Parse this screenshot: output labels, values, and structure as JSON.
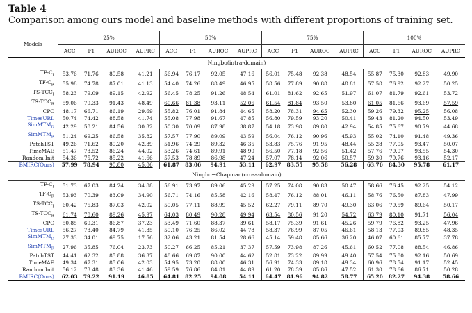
{
  "title": "Table 4",
  "caption": "Comparison among ours model and baseline methods with different proportions of training set.",
  "models_label": "Models",
  "proportions": [
    "25%",
    "50%",
    "75%",
    "100%"
  ],
  "metrics": [
    "ACC",
    "F1",
    "AUROC",
    "AUPRC"
  ],
  "colors": {
    "text": "#111111",
    "model_blue": "#1f3fb0"
  },
  "sections": [
    {
      "name": "Ningbo(intra-domain)",
      "rows": [
        {
          "model": "TF-C_I",
          "blue": false,
          "values": [
            [
              "53.76",
              "71.76",
              "89.58",
              "41.21"
            ],
            [
              "56.94",
              "76.17",
              "92.05",
              "47.16"
            ],
            [
              "56.01",
              "75.48",
              "92.38",
              "48.54"
            ],
            [
              "55.87",
              "75.30",
              "92.83",
              "49.90"
            ]
          ]
        },
        {
          "model": "TF-C_R",
          "blue": false,
          "values": [
            [
              "55.98",
              "74.78",
              "87.01",
              "41.13"
            ],
            [
              "54.40",
              "74.26",
              "88.49",
              "46.95"
            ],
            [
              "58.56",
              "77.89",
              "90.88",
              "48.81"
            ],
            [
              "57.58",
              "76.92",
              "92.27",
              "50.25"
            ]
          ]
        },
        {
          "model": "TS-TCC_I",
          "blue": false,
          "values": [
            [
              "_58.23",
              "_79.09",
              "89.15",
              "42.92"
            ],
            [
              "56.45",
              "78.25",
              "91.26",
              "48.54"
            ],
            [
              "61.01",
              "81.62",
              "92.65",
              "51.97"
            ],
            [
              "61.07",
              "_81.79",
              "92.61",
              "53.72"
            ]
          ]
        },
        {
          "model": "TS-TCC_R",
          "blue": false,
          "values": [
            [
              "59.06",
              "79.33",
              "91.43",
              "48.49"
            ],
            [
              "_60.66",
              "_81.38",
              "93.11",
              "_52.06"
            ],
            [
              "_61.54",
              "_81.84",
              "93.50",
              "53.80"
            ],
            [
              "_61.05",
              "81.66",
              "93.69",
              "_57.59"
            ]
          ]
        },
        {
          "model": "CPC",
          "blue": false,
          "values": [
            [
              "48.17",
              "66.71",
              "86.19",
              "29.69"
            ],
            [
              "55.82",
              "76.01",
              "91.84",
              "44.65"
            ],
            [
              "58.20",
              "78.31",
              "_94.65",
              "52.30"
            ],
            [
              "59.26",
              "79.32",
              "_95.25",
              "56.08"
            ]
          ]
        },
        {
          "model": "TimesURL",
          "blue": true,
          "values": [
            [
              "50.74",
              "74.42",
              "88.58",
              "41.74"
            ],
            [
              "55.08",
              "77.98",
              "91.67",
              "47.85"
            ],
            [
              "56.80",
              "79.59",
              "93.20",
              "50.41"
            ],
            [
              "59.43",
              "81.20",
              "94.50",
              "53.49"
            ]
          ]
        },
        {
          "model": "SimMTM_D",
          "blue": true,
          "values": [
            [
              "42.29",
              "58.21",
              "84.56",
              "30.32"
            ],
            [
              "50.30",
              "70.09",
              "87.98",
              "38.87"
            ],
            [
              "54.18",
              "73.98",
              "89.80",
              "42.94"
            ],
            [
              "54.85",
              "75.67",
              "90.79",
              "44.68"
            ]
          ]
        },
        {
          "model": "SimMTM_R",
          "blue": true,
          "values": [
            [
              "51.24",
              "69.25",
              "86.58",
              "35.82"
            ],
            [
              "57.57",
              "77.90",
              "89.09",
              "43.59"
            ],
            [
              "56.04",
              "76.12",
              "90.96",
              "45.93"
            ],
            [
              "55.02",
              "74.10",
              "91.48",
              "49.36"
            ]
          ]
        },
        {
          "model": "PatchTST",
          "blue": false,
          "values": [
            [
              "49.26",
              "71.62",
              "89.20",
              "42.39"
            ],
            [
              "51.96",
              "74.29",
              "89.32",
              "46.35"
            ],
            [
              "53.83",
              "75.76",
              "91.95",
              "48.44"
            ],
            [
              "55.28",
              "77.05",
              "93.47",
              "50.07"
            ]
          ]
        },
        {
          "model": "TimeMAE",
          "blue": false,
          "values": [
            [
              "51.47",
              "73.52",
              "86.24",
              "44.02"
            ],
            [
              "53.26",
              "74.61",
              "89.91",
              "48.90"
            ],
            [
              "56.50",
              "77.18",
              "92.56",
              "51.42"
            ],
            [
              "57.76",
              "79.97",
              "93.55",
              "54.30"
            ]
          ]
        },
        {
          "model": "Random Init",
          "blue": false,
          "values": [
            [
              "54.36",
              "75.72",
              "85.22",
              "41.66"
            ],
            [
              "57.53",
              "78.89",
              "86.98",
              "47.24"
            ],
            [
              "57.07",
              "78.14",
              "92.06",
              "50.57"
            ],
            [
              "59.30",
              "79.76",
              "93.16",
              "52.17"
            ]
          ]
        },
        {
          "model": "BMIRC(Ours)",
          "blue": true,
          "values": [
            [
              "*57.99",
              "*78.94",
              "_90.80",
              "_45.86"
            ],
            [
              "*61.87",
              "*83.06",
              "*94.91",
              "*53.11"
            ],
            [
              "*62.97",
              "*83.55",
              "*95.58",
              "*56.28"
            ],
            [
              "*63.76",
              "*84.30",
              "*95.78",
              "*61.17"
            ]
          ]
        }
      ]
    },
    {
      "name": "Ningbo→Chapman(cross-domain)",
      "rows": [
        {
          "model": "TF-C_I",
          "blue": false,
          "values": [
            [
              "51.73",
              "67.03",
              "84.24",
              "34.88"
            ],
            [
              "56.91",
              "73.97",
              "89.06",
              "45.29"
            ],
            [
              "57.25",
              "74.08",
              "90.83",
              "50.47"
            ],
            [
              "58.66",
              "76.45",
              "92.25",
              "54.12"
            ]
          ]
        },
        {
          "model": "TF-C_R",
          "blue": false,
          "values": [
            [
              "53.93",
              "70.39",
              "83.09",
              "34.90"
            ],
            [
              "56.71",
              "74.16",
              "85.58",
              "42.16"
            ],
            [
              "58.47",
              "76.12",
              "88.01",
              "46.11"
            ],
            [
              "58.76",
              "76.50",
              "87.83",
              "47.99"
            ]
          ]
        },
        {
          "model": "TS-TCC_I",
          "blue": false,
          "values": [
            [
              "60.42",
              "76.83",
              "87.03",
              "42.02"
            ],
            [
              "59.05",
              "77.11",
              "88.99",
              "45.52"
            ],
            [
              "62.27",
              "79.11",
              "89.70",
              "49.30"
            ],
            [
              "63.06",
              "79.59",
              "89.64",
              "50.17"
            ]
          ]
        },
        {
          "model": "TS-TCC_R",
          "blue": false,
          "values": [
            [
              "_61.74",
              "_78.60",
              "_89.26",
              "_45.97"
            ],
            [
              "_64.03",
              "_80.49",
              "_90.28",
              "_49.94"
            ],
            [
              "_63.54",
              "_80.56",
              "91.20",
              "_54.72"
            ],
            [
              "_63.79",
              "_80.10",
              "91.71",
              "_56.04"
            ]
          ]
        },
        {
          "model": "CPC",
          "blue": false,
          "values": [
            [
              "50.85",
              "69.31",
              "86.87",
              "37.23"
            ],
            [
              "53.49",
              "71.60",
              "88.37",
              "39.61"
            ],
            [
              "58.17",
              "75.39",
              "_91.61",
              "45.26"
            ],
            [
              "59.79",
              "76.82",
              "_93.25",
              "47.96"
            ]
          ]
        },
        {
          "model": "TimesURL",
          "blue": true,
          "values": [
            [
              "56.27",
              "73.40",
              "84.79",
              "41.35"
            ],
            [
              "59.10",
              "76.25",
              "86.02",
              "44.78"
            ],
            [
              "58.37",
              "76.99",
              "87.05",
              "46.61"
            ],
            [
              "58.13",
              "77.03",
              "89.85",
              "48.35"
            ]
          ]
        },
        {
          "model": "SimMTM_D",
          "blue": true,
          "values": [
            [
              "27.33",
              "34.01",
              "69.75",
              "17.56"
            ],
            [
              "32.06",
              "43.21",
              "81.54",
              "28.66"
            ],
            [
              "45.14",
              "59.48",
              "85.66",
              "36.20"
            ],
            [
              "46.07",
              "60.61",
              "85.77",
              "37.78"
            ]
          ]
        },
        {
          "model": "SimMTM_R",
          "blue": true,
          "values": [
            [
              "27.96",
              "35.85",
              "76.04",
              "23.73"
            ],
            [
              "50.27",
              "66.25",
              "85.21",
              "37.37"
            ],
            [
              "57.59",
              "73.98",
              "87.26",
              "45.61"
            ],
            [
              "60.52",
              "77.08",
              "88.54",
              "46.86"
            ]
          ]
        },
        {
          "model": "PatchTST",
          "blue": false,
          "values": [
            [
              "44.41",
              "62.32",
              "85.88",
              "36.37"
            ],
            [
              "48.66",
              "69.87",
              "90.00",
              "44.62"
            ],
            [
              "52.81",
              "73.22",
              "89.99",
              "49.40"
            ],
            [
              "57.54",
              "75.80",
              "92.16",
              "50.69"
            ]
          ]
        },
        {
          "model": "TimeMAE",
          "blue": false,
          "values": [
            [
              "49.34",
              "67.31",
              "85.06",
              "42.03"
            ],
            [
              "54.95",
              "73.20",
              "88.00",
              "46.31"
            ],
            [
              "56.91",
              "74.33",
              "89.18",
              "49.34"
            ],
            [
              "60.96",
              "78.54",
              "91.17",
              "52.45"
            ]
          ]
        },
        {
          "model": "Random Init",
          "blue": false,
          "values": [
            [
              "56.12",
              "73.48",
              "83.36",
              "41.46"
            ],
            [
              "59.59",
              "76.86",
              "84.81",
              "44.89"
            ],
            [
              "61.20",
              "78.39",
              "85.86",
              "47.52"
            ],
            [
              "61.30",
              "78.66",
              "86.71",
              "50.28"
            ]
          ]
        },
        {
          "model": "BMIRC(Ours)",
          "blue": true,
          "values": [
            [
              "*62.03",
              "*79.22",
              "*91.19",
              "*46.85"
            ],
            [
              "*64.81",
              "*82.25",
              "*94.08",
              "*54.11"
            ],
            [
              "*64.47",
              "*81.96",
              "*94.82",
              "*58.77"
            ],
            [
              "*65.20",
              "*82.27",
              "*94.38",
              "*58.66"
            ]
          ]
        }
      ]
    }
  ]
}
